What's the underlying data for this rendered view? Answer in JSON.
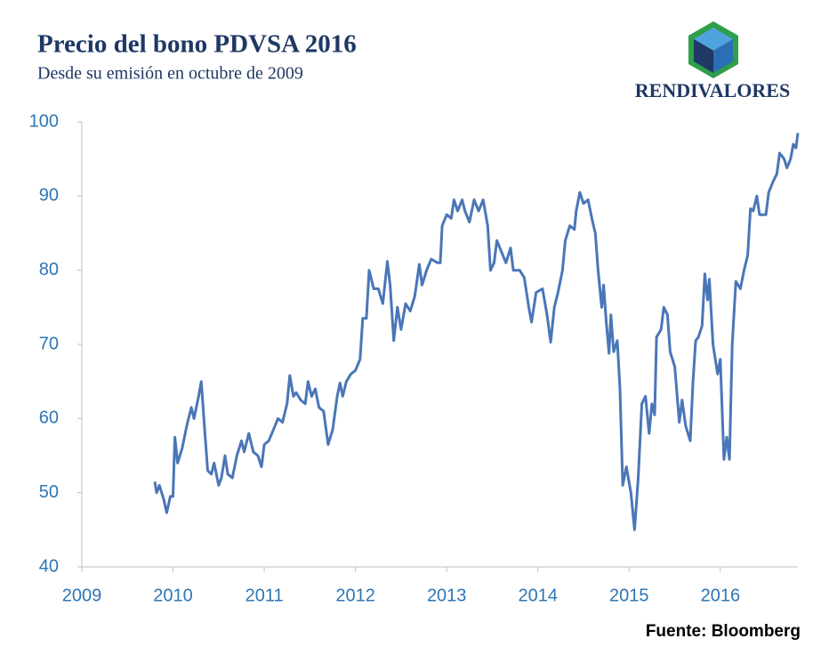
{
  "chart_data": {
    "type": "line",
    "title": "Precio del bono PDVSA 2016",
    "subtitle": "Desde su emisión en octubre de 2009",
    "logo_text": "RENDIVALORES",
    "source": "Fuente: Bloomberg",
    "color": "#4a76b8",
    "x": [
      2009.8,
      2009.82,
      2009.85,
      2009.9,
      2009.93,
      2009.97,
      2010.0,
      2010.02,
      2010.05,
      2010.1,
      2010.15,
      2010.2,
      2010.23,
      2010.28,
      2010.31,
      2010.35,
      2010.38,
      2010.42,
      2010.45,
      2010.5,
      2010.53,
      2010.57,
      2010.6,
      2010.65,
      2010.7,
      2010.75,
      2010.78,
      2010.83,
      2010.88,
      2010.93,
      2010.97,
      2011.0,
      2011.05,
      2011.1,
      2011.15,
      2011.2,
      2011.25,
      2011.28,
      2011.32,
      2011.35,
      2011.4,
      2011.45,
      2011.48,
      2011.52,
      2011.56,
      2011.6,
      2011.65,
      2011.7,
      2011.75,
      2011.8,
      2011.83,
      2011.86,
      2011.9,
      2011.95,
      2012.0,
      2012.05,
      2012.08,
      2012.12,
      2012.15,
      2012.2,
      2012.25,
      2012.3,
      2012.35,
      2012.38,
      2012.42,
      2012.46,
      2012.5,
      2012.55,
      2012.6,
      2012.65,
      2012.7,
      2012.73,
      2012.78,
      2012.83,
      2012.9,
      2012.93,
      2012.95,
      2013.0,
      2013.05,
      2013.08,
      2013.12,
      2013.17,
      2013.2,
      2013.25,
      2013.3,
      2013.35,
      2013.4,
      2013.45,
      2013.48,
      2013.52,
      2013.55,
      2013.6,
      2013.65,
      2013.7,
      2013.73,
      2013.8,
      2013.85,
      2013.9,
      2013.93,
      2013.98,
      2014.05,
      2014.1,
      2014.14,
      2014.18,
      2014.22,
      2014.27,
      2014.3,
      2014.35,
      2014.4,
      2014.42,
      2014.46,
      2014.5,
      2014.55,
      2014.6,
      2014.63,
      2014.66,
      2014.7,
      2014.72,
      2014.75,
      2014.78,
      2014.8,
      2014.83,
      2014.87,
      2014.9,
      2014.93,
      2014.97,
      2015.02,
      2015.06,
      2015.1,
      2015.14,
      2015.18,
      2015.22,
      2015.25,
      2015.28,
      2015.3,
      2015.35,
      2015.38,
      2015.42,
      2015.45,
      2015.5,
      2015.55,
      2015.58,
      2015.62,
      2015.67,
      2015.7,
      2015.73,
      2015.76,
      2015.8,
      2015.83,
      2015.86,
      2015.88,
      2015.92,
      2015.97,
      2016.0,
      2016.04,
      2016.07,
      2016.1,
      2016.13,
      2016.17,
      2016.22,
      2016.26,
      2016.3,
      2016.33,
      2016.36,
      2016.4,
      2016.43,
      2016.5,
      2016.53,
      2016.58,
      2016.62,
      2016.65,
      2016.7,
      2016.73,
      2016.77,
      2016.8,
      2016.83,
      2016.85
    ],
    "values": [
      51.5,
      50,
      51,
      49,
      47.3,
      49.5,
      49.5,
      57.5,
      54,
      56,
      59,
      61.5,
      60,
      63,
      65,
      58,
      53,
      52.5,
      54,
      51,
      52,
      55,
      52.5,
      52,
      55,
      57,
      55.5,
      58,
      55.5,
      55,
      53.5,
      56.5,
      57,
      58.5,
      60,
      59.5,
      62,
      65.8,
      63,
      63.5,
      62.5,
      62,
      65,
      63,
      64,
      61.5,
      61,
      56.5,
      58.5,
      63,
      64.8,
      63,
      65,
      66,
      66.5,
      68,
      73.5,
      73.5,
      80,
      77.5,
      77.5,
      75.5,
      81.2,
      78,
      70.5,
      75,
      72,
      75.5,
      74.5,
      76.5,
      80.8,
      78,
      80,
      81.5,
      81,
      81,
      86,
      87.5,
      87,
      89.5,
      88,
      89.5,
      88,
      86.5,
      89.5,
      88,
      89.5,
      86,
      80,
      81,
      84,
      82.5,
      81,
      83,
      80,
      80,
      79,
      75,
      73,
      77,
      77.5,
      74,
      70.3,
      75,
      77,
      80,
      84,
      86,
      85.5,
      88,
      90.5,
      89,
      89.5,
      86.5,
      85,
      80,
      75,
      78,
      73,
      68.8,
      74,
      69,
      70.5,
      64,
      51,
      53.5,
      50,
      45,
      52,
      62,
      63,
      58,
      62,
      60.5,
      71,
      72,
      75,
      74,
      69,
      67,
      59.5,
      62.5,
      59,
      57,
      65,
      70.5,
      71,
      72.5,
      79.5,
      76,
      78.8,
      70,
      66,
      68,
      54.5,
      57.5,
      54.5,
      70,
      78.5,
      77.5,
      80,
      82,
      88.3,
      88,
      90,
      87.5,
      87.5,
      90.5,
      92,
      93,
      95.8,
      95,
      93.8,
      95,
      97,
      96.5,
      98.5
    ],
    "xlim": [
      2009,
      2016.85
    ],
    "xticks": [
      2009,
      2010,
      2011,
      2012,
      2013,
      2014,
      2015,
      2016
    ],
    "ylim": [
      40,
      100
    ],
    "yticks": [
      40,
      50,
      60,
      70,
      80,
      90,
      100
    ]
  }
}
